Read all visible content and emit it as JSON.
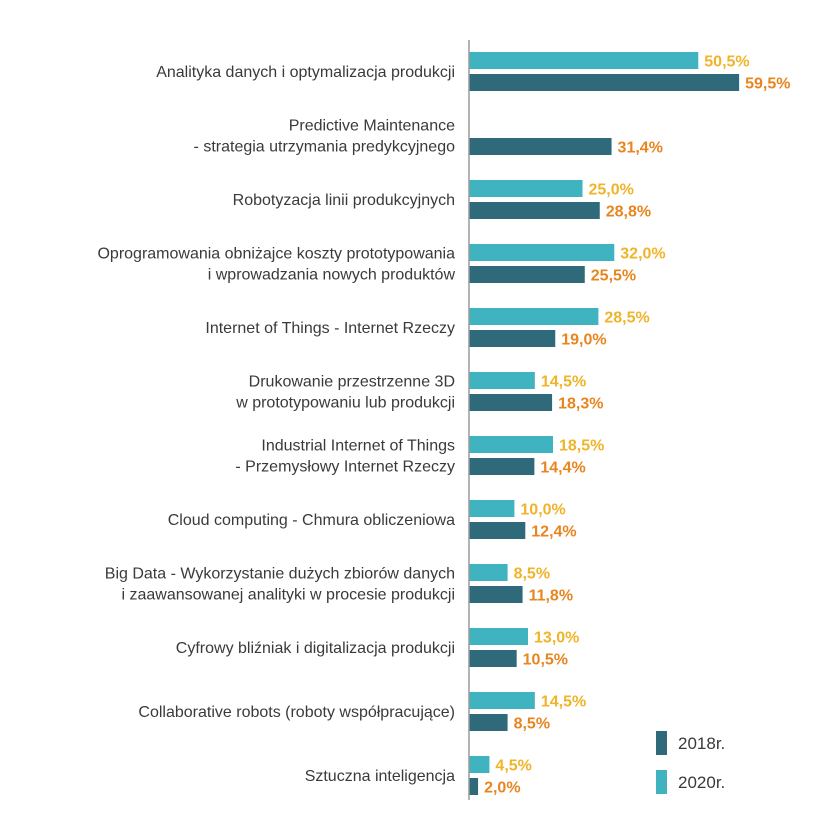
{
  "chart_data": {
    "type": "bar",
    "orientation": "horizontal",
    "title": "",
    "xlabel": "",
    "ylabel": "",
    "xlim": [
      0,
      60
    ],
    "grid": false,
    "legend_position": "bottom-right",
    "categories": [
      [
        "Analityka danych i optymalizacja produkcji"
      ],
      [
        "Predictive Maintenance",
        "- strategia utrzymania predykcyjnego"
      ],
      [
        "Robotyzacja linii produkcyjnych"
      ],
      [
        "Oprogramowania obniżajce koszty prototypowania",
        "i wprowadzania nowych produktów"
      ],
      [
        "Internet of Things - Internet Rzeczy"
      ],
      [
        "Drukowanie przestrzenne 3D",
        "w prototypowaniu lub produkcji"
      ],
      [
        "Industrial Internet of Things",
        "- Przemysłowy Internet Rzeczy"
      ],
      [
        "Cloud computing - Chmura obliczeniowa"
      ],
      [
        "Big Data - Wykorzystanie dużych zbiorów danych",
        "i zaawansowanej analityki w procesie produkcji"
      ],
      [
        "Cyfrowy bliźniak i digitalizacja produkcji"
      ],
      [
        "Collaborative robots (roboty współpracujące)"
      ],
      [
        "Sztuczna inteligencja"
      ]
    ],
    "series": [
      {
        "name": "2020r.",
        "color": "#3fb3c0",
        "label_color": "#f0b429",
        "values": [
          50.5,
          null,
          25.0,
          32.0,
          28.5,
          14.5,
          18.5,
          10.0,
          8.5,
          13.0,
          14.5,
          4.5
        ],
        "labels": [
          "50,5%",
          "",
          "25,0%",
          "32,0%",
          "28,5%",
          "14,5%",
          "18,5%",
          "10,0%",
          "8,5%",
          "13,0%",
          "14,5%",
          "4,5%"
        ]
      },
      {
        "name": "2018r.",
        "color": "#2e6a7a",
        "label_color": "#e8851f",
        "values": [
          59.5,
          31.4,
          28.8,
          25.5,
          19.0,
          18.3,
          14.4,
          12.4,
          11.8,
          10.5,
          8.5,
          2.0
        ],
        "labels": [
          "59,5%",
          "31,4%",
          "28,8%",
          "25,5%",
          "19,0%",
          "18,3%",
          "14,4%",
          "12,4%",
          "11,8%",
          "10,5%",
          "8,5%",
          "2,0%"
        ]
      }
    ],
    "legend": [
      {
        "label": "2018r.",
        "color": "#2e6a7a"
      },
      {
        "label": "2020r.",
        "color": "#3fb3c0"
      }
    ]
  }
}
